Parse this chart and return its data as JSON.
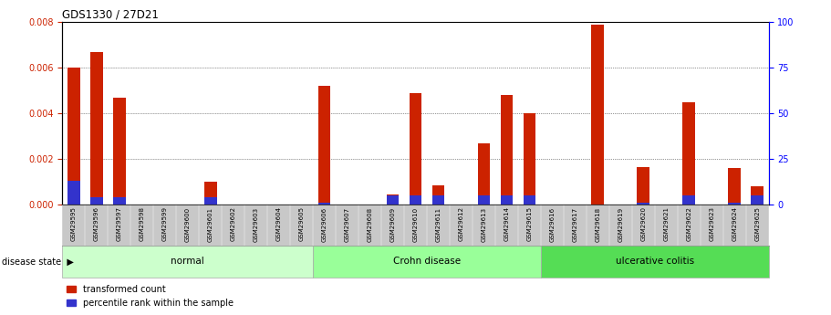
{
  "title": "GDS1330 / 27D21",
  "samples": [
    "GSM29595",
    "GSM29596",
    "GSM29597",
    "GSM29598",
    "GSM29599",
    "GSM29600",
    "GSM29601",
    "GSM29602",
    "GSM29603",
    "GSM29604",
    "GSM29605",
    "GSM29606",
    "GSM29607",
    "GSM29608",
    "GSM29609",
    "GSM29610",
    "GSM29611",
    "GSM29612",
    "GSM29613",
    "GSM29614",
    "GSM29615",
    "GSM29616",
    "GSM29617",
    "GSM29618",
    "GSM29619",
    "GSM29620",
    "GSM29621",
    "GSM29622",
    "GSM29623",
    "GSM29624",
    "GSM29625"
  ],
  "red_values": [
    0.006,
    0.0067,
    0.0047,
    0.0,
    0.0,
    0.0,
    0.001,
    0.0,
    0.0,
    0.0,
    0.0,
    0.0052,
    0.0,
    0.0,
    0.00045,
    0.0049,
    0.00085,
    0.0,
    0.0027,
    0.0048,
    0.004,
    0.0,
    0.0,
    0.0079,
    0.0,
    0.00165,
    0.0,
    0.0045,
    0.0,
    0.0016,
    0.0008
  ],
  "blue_fractions": [
    13,
    4,
    4,
    0,
    0,
    0,
    4,
    0,
    0,
    0,
    0,
    1,
    0,
    0,
    5,
    5,
    5,
    0,
    5,
    5,
    5,
    0,
    0,
    0,
    0,
    1,
    0,
    5,
    0,
    1,
    5
  ],
  "groups": [
    {
      "label": "normal",
      "start": 0,
      "end": 10,
      "color": "#ccffcc"
    },
    {
      "label": "Crohn disease",
      "start": 11,
      "end": 20,
      "color": "#99ff99"
    },
    {
      "label": "ulcerative colitis",
      "start": 21,
      "end": 30,
      "color": "#55dd55"
    }
  ],
  "ylim_left": [
    0,
    0.008
  ],
  "ylim_right": [
    0,
    100
  ],
  "yticks_left": [
    0,
    0.002,
    0.004,
    0.006,
    0.008
  ],
  "yticks_right": [
    0,
    25,
    50,
    75,
    100
  ],
  "red_color": "#cc2200",
  "blue_color": "#3333cc",
  "background_color": "#ffffff",
  "grid_color": "#333333",
  "bar_width": 0.55,
  "blue_bar_height": 8e-05
}
